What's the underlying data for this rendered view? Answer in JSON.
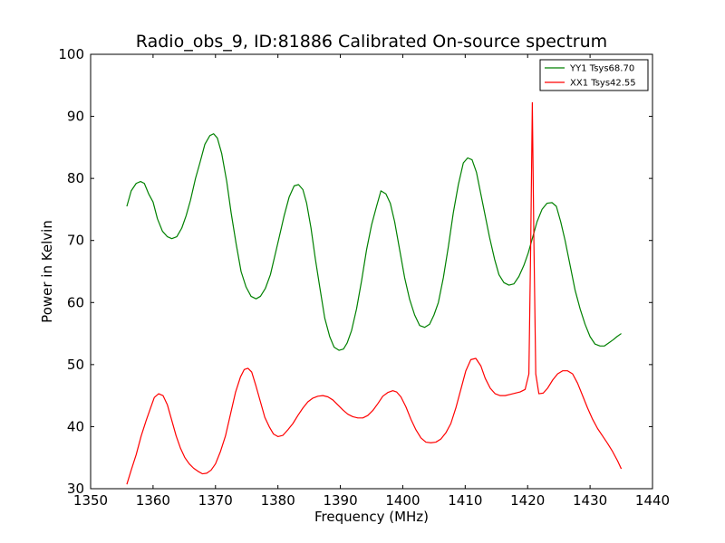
{
  "chart_data": {
    "type": "line",
    "title": "Radio_obs_9, ID:81886 Calibrated On-source spectrum",
    "xlabel": "Frequency (MHz)",
    "ylabel": "Power in Kelvin",
    "xlim": [
      1350,
      1440
    ],
    "ylim": [
      30,
      100
    ],
    "xticks": [
      1350,
      1360,
      1370,
      1380,
      1390,
      1400,
      1410,
      1420,
      1430,
      1440
    ],
    "yticks": [
      30,
      40,
      50,
      60,
      70,
      80,
      90,
      100
    ],
    "grid": false,
    "legend_position": "top-right",
    "series": [
      {
        "name": "YY1 Tsys68.70",
        "color": "#008000",
        "x": [
          1355.8,
          1356.5,
          1357.3,
          1358.0,
          1358.6,
          1359.3,
          1360.0,
          1360.7,
          1361.5,
          1362.3,
          1363.0,
          1363.8,
          1364.6,
          1365.3,
          1366.0,
          1366.8,
          1367.5,
          1368.3,
          1369.1,
          1369.7,
          1370.3,
          1371.0,
          1371.8,
          1372.5,
          1373.3,
          1374.1,
          1374.9,
          1375.7,
          1376.5,
          1377.2,
          1378.0,
          1378.8,
          1379.5,
          1380.2,
          1381.0,
          1381.8,
          1382.6,
          1383.3,
          1384.0,
          1384.6,
          1385.3,
          1386.0,
          1386.7,
          1387.5,
          1388.3,
          1389.0,
          1389.8,
          1390.5,
          1391.1,
          1391.8,
          1392.6,
          1393.4,
          1394.2,
          1395.0,
          1395.8,
          1396.5,
          1397.3,
          1398.0,
          1398.7,
          1399.5,
          1400.3,
          1401.1,
          1401.9,
          1402.7,
          1403.5,
          1404.3,
          1405.0,
          1405.7,
          1406.5,
          1407.3,
          1408.1,
          1408.9,
          1409.7,
          1410.4,
          1411.1,
          1411.8,
          1412.4,
          1413.1,
          1413.9,
          1414.7,
          1415.4,
          1416.2,
          1417.0,
          1417.8,
          1418.6,
          1419.4,
          1420.1,
          1420.8,
          1421.5,
          1422.3,
          1423.1,
          1423.9,
          1424.6,
          1425.3,
          1426.0,
          1426.8,
          1427.6,
          1428.4,
          1429.2,
          1430.0,
          1430.8,
          1431.6,
          1432.3,
          1433.0,
          1433.7,
          1434.3,
          1435.0
        ],
        "values": [
          75.5,
          78.0,
          79.2,
          79.5,
          79.2,
          77.5,
          76.2,
          73.5,
          71.5,
          70.6,
          70.3,
          70.6,
          72.0,
          74.0,
          76.5,
          80.0,
          82.5,
          85.5,
          86.9,
          87.2,
          86.5,
          84.0,
          79.5,
          74.5,
          69.5,
          65.0,
          62.5,
          61.0,
          60.6,
          61.0,
          62.3,
          64.5,
          67.5,
          70.5,
          74.0,
          77.0,
          78.8,
          79.0,
          78.2,
          76.0,
          72.0,
          67.0,
          62.5,
          57.5,
          54.5,
          52.8,
          52.3,
          52.5,
          53.5,
          55.5,
          59.0,
          63.5,
          68.5,
          72.5,
          75.5,
          78.0,
          77.5,
          76.0,
          73.0,
          68.5,
          64.0,
          60.5,
          58.0,
          56.3,
          56.0,
          56.5,
          58.0,
          60.0,
          64.0,
          69.0,
          74.5,
          79.0,
          82.5,
          83.3,
          83.0,
          81.0,
          78.0,
          74.5,
          70.5,
          67.0,
          64.5,
          63.2,
          62.8,
          63.0,
          64.2,
          66.0,
          68.0,
          70.5,
          73.0,
          75.0,
          76.0,
          76.1,
          75.5,
          73.0,
          70.0,
          66.0,
          62.0,
          59.0,
          56.5,
          54.5,
          53.3,
          53.0,
          53.0,
          53.5,
          54.0,
          54.5,
          55.0
        ]
      },
      {
        "name": "XX1 Tsys42.55",
        "color": "#ff0000",
        "x": [
          1355.8,
          1356.5,
          1357.3,
          1358.1,
          1358.9,
          1359.6,
          1360.2,
          1360.9,
          1361.6,
          1362.3,
          1363.0,
          1363.7,
          1364.4,
          1365.1,
          1365.8,
          1366.5,
          1367.2,
          1367.9,
          1368.6,
          1369.3,
          1370.0,
          1370.8,
          1371.6,
          1372.4,
          1373.2,
          1374.0,
          1374.6,
          1375.2,
          1375.8,
          1376.5,
          1377.2,
          1377.9,
          1378.6,
          1379.3,
          1380.0,
          1380.8,
          1381.6,
          1382.4,
          1383.2,
          1384.0,
          1384.8,
          1385.6,
          1386.4,
          1387.2,
          1388.0,
          1388.8,
          1389.6,
          1390.4,
          1391.2,
          1392.0,
          1392.8,
          1393.6,
          1394.4,
          1395.2,
          1396.0,
          1396.8,
          1397.6,
          1398.4,
          1399.0,
          1399.7,
          1400.5,
          1401.3,
          1402.1,
          1402.9,
          1403.7,
          1404.5,
          1405.3,
          1406.1,
          1406.9,
          1407.7,
          1408.5,
          1409.3,
          1410.1,
          1410.9,
          1411.7,
          1412.5,
          1413.2,
          1414.0,
          1414.8,
          1415.6,
          1416.4,
          1417.2,
          1418.0,
          1418.8,
          1419.6,
          1420.2,
          1420.5,
          1420.75,
          1421.0,
          1421.3,
          1421.8,
          1422.5,
          1423.2,
          1424.0,
          1424.8,
          1425.6,
          1426.4,
          1427.2,
          1428.0,
          1428.8,
          1429.6,
          1430.4,
          1431.2,
          1432.0,
          1432.8,
          1433.6,
          1434.4,
          1435.0
        ],
        "values": [
          30.7,
          33.0,
          35.5,
          38.5,
          41.0,
          43.0,
          44.7,
          45.3,
          45.0,
          43.5,
          41.0,
          38.5,
          36.5,
          35.0,
          34.0,
          33.3,
          32.8,
          32.4,
          32.5,
          33.0,
          34.0,
          36.0,
          38.5,
          42.0,
          45.5,
          48.0,
          49.2,
          49.4,
          48.8,
          46.5,
          44.0,
          41.5,
          40.0,
          38.8,
          38.4,
          38.6,
          39.5,
          40.5,
          41.8,
          43.0,
          44.0,
          44.6,
          44.9,
          45.0,
          44.8,
          44.3,
          43.5,
          42.7,
          42.0,
          41.6,
          41.4,
          41.4,
          41.8,
          42.6,
          43.7,
          44.9,
          45.5,
          45.8,
          45.6,
          44.8,
          43.2,
          41.2,
          39.5,
          38.2,
          37.5,
          37.4,
          37.5,
          38.0,
          39.0,
          40.5,
          43.0,
          46.0,
          49.0,
          50.8,
          51.0,
          49.8,
          47.8,
          46.2,
          45.3,
          45.0,
          45.0,
          45.2,
          45.4,
          45.6,
          46.0,
          48.5,
          70.0,
          92.2,
          70.0,
          48.5,
          45.3,
          45.4,
          46.2,
          47.5,
          48.5,
          49.0,
          49.0,
          48.5,
          47.0,
          45.0,
          43.0,
          41.2,
          39.7,
          38.5,
          37.3,
          36.0,
          34.5,
          33.2
        ]
      }
    ]
  }
}
